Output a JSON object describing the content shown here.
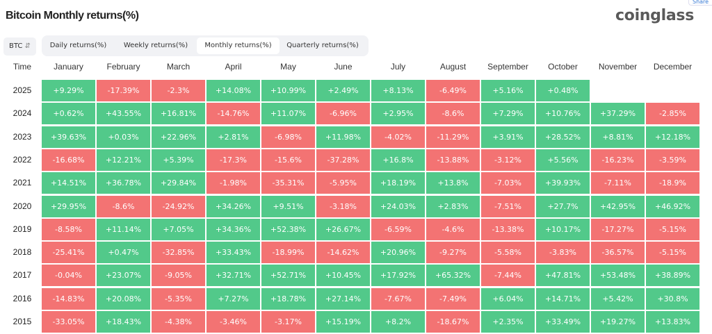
{
  "title": "Bitcoin Monthly returns(%)",
  "logo": "coinglass",
  "share_label": "Share",
  "asset_select": {
    "value": "BTC"
  },
  "tabs": [
    {
      "label": "Daily returns(%)",
      "active": false
    },
    {
      "label": "Weekly returns(%)",
      "active": false
    },
    {
      "label": "Monthly returns(%)",
      "active": true
    },
    {
      "label": "Quarterly returns(%)",
      "active": false
    }
  ],
  "colors": {
    "positive": "#52c98a",
    "negative": "#f37373"
  },
  "chart_data": {
    "type": "heatmap",
    "title": "Bitcoin Monthly returns(%)",
    "row_header": "Time",
    "columns": [
      "January",
      "February",
      "March",
      "April",
      "May",
      "June",
      "July",
      "August",
      "September",
      "October",
      "November",
      "December"
    ],
    "rows": [
      {
        "year": "2025",
        "values": [
          "+9.29%",
          "-17.39%",
          "-2.3%",
          "+14.08%",
          "+10.99%",
          "+2.49%",
          "+8.13%",
          "-6.49%",
          "+5.16%",
          "+0.48%",
          null,
          null
        ]
      },
      {
        "year": "2024",
        "values": [
          "+0.62%",
          "+43.55%",
          "+16.81%",
          "-14.76%",
          "+11.07%",
          "-6.96%",
          "+2.95%",
          "-8.6%",
          "+7.29%",
          "+10.76%",
          "+37.29%",
          "-2.85%"
        ]
      },
      {
        "year": "2023",
        "values": [
          "+39.63%",
          "+0.03%",
          "+22.96%",
          "+2.81%",
          "-6.98%",
          "+11.98%",
          "-4.02%",
          "-11.29%",
          "+3.91%",
          "+28.52%",
          "+8.81%",
          "+12.18%"
        ]
      },
      {
        "year": "2022",
        "values": [
          "-16.68%",
          "+12.21%",
          "+5.39%",
          "-17.3%",
          "-15.6%",
          "-37.28%",
          "+16.8%",
          "-13.88%",
          "-3.12%",
          "+5.56%",
          "-16.23%",
          "-3.59%"
        ]
      },
      {
        "year": "2021",
        "values": [
          "+14.51%",
          "+36.78%",
          "+29.84%",
          "-1.98%",
          "-35.31%",
          "-5.95%",
          "+18.19%",
          "+13.8%",
          "-7.03%",
          "+39.93%",
          "-7.11%",
          "-18.9%"
        ]
      },
      {
        "year": "2020",
        "values": [
          "+29.95%",
          "-8.6%",
          "-24.92%",
          "+34.26%",
          "+9.51%",
          "-3.18%",
          "+24.03%",
          "+2.83%",
          "-7.51%",
          "+27.7%",
          "+42.95%",
          "+46.92%"
        ]
      },
      {
        "year": "2019",
        "values": [
          "-8.58%",
          "+11.14%",
          "+7.05%",
          "+34.36%",
          "+52.38%",
          "+26.67%",
          "-6.59%",
          "-4.6%",
          "-13.38%",
          "+10.17%",
          "-17.27%",
          "-5.15%"
        ]
      },
      {
        "year": "2018",
        "values": [
          "-25.41%",
          "+0.47%",
          "-32.85%",
          "+33.43%",
          "-18.99%",
          "-14.62%",
          "+20.96%",
          "-9.27%",
          "-5.58%",
          "-3.83%",
          "-36.57%",
          "-5.15%"
        ]
      },
      {
        "year": "2017",
        "values": [
          "-0.04%",
          "+23.07%",
          "-9.05%",
          "+32.71%",
          "+52.71%",
          "+10.45%",
          "+17.92%",
          "+65.32%",
          "-7.44%",
          "+47.81%",
          "+53.48%",
          "+38.89%"
        ]
      },
      {
        "year": "2016",
        "values": [
          "-14.83%",
          "+20.08%",
          "-5.35%",
          "+7.27%",
          "+18.78%",
          "+27.14%",
          "-7.67%",
          "-7.49%",
          "+6.04%",
          "+14.71%",
          "+5.42%",
          "+30.8%"
        ]
      },
      {
        "year": "2015",
        "values": [
          "-33.05%",
          "+18.43%",
          "-4.38%",
          "-3.46%",
          "-3.17%",
          "+15.19%",
          "+8.2%",
          "-18.67%",
          "+2.35%",
          "+33.49%",
          "+19.27%",
          "+13.83%"
        ]
      }
    ]
  }
}
